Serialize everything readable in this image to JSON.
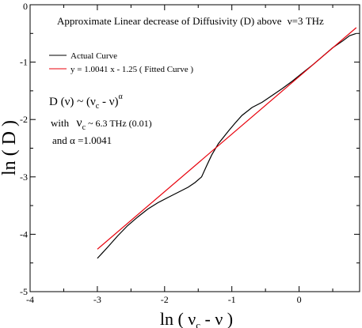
{
  "chart_data": {
    "type": "line",
    "title": "Approximate Linear decrease of Diffusivity (D) above",
    "title_suffix": "ν=3 THz",
    "xlabel": "ln ( ν",
    "xlabel_sub": "c",
    "xlabel_tail": " - ν )",
    "ylabel": "ln ( D )",
    "xlim": [
      -4,
      0.9
    ],
    "ylim": [
      -5,
      0
    ],
    "x_ticks": [
      -4,
      -3,
      -2,
      -1,
      0
    ],
    "y_ticks": [
      -5,
      -4,
      -3,
      -2,
      -1,
      0
    ],
    "grid": false,
    "legend_position": "top-left",
    "series": [
      {
        "name": "Actual Curve",
        "color": "#000000",
        "x": [
          -3.0,
          -2.85,
          -2.7,
          -2.55,
          -2.4,
          -2.25,
          -2.1,
          -1.95,
          -1.8,
          -1.65,
          -1.55,
          -1.45,
          -1.38,
          -1.3,
          -1.2,
          -1.05,
          -0.95,
          -0.85,
          -0.7,
          -0.55,
          -0.4,
          -0.25,
          -0.1,
          0.05,
          0.2,
          0.35,
          0.5,
          0.65,
          0.75,
          0.85
        ],
        "y": [
          -4.42,
          -4.23,
          -4.03,
          -3.85,
          -3.7,
          -3.56,
          -3.45,
          -3.36,
          -3.27,
          -3.18,
          -3.1,
          -3.0,
          -2.82,
          -2.62,
          -2.42,
          -2.2,
          -2.06,
          -1.93,
          -1.79,
          -1.7,
          -1.58,
          -1.46,
          -1.33,
          -1.19,
          -1.05,
          -0.9,
          -0.75,
          -0.63,
          -0.54,
          -0.5
        ]
      },
      {
        "name": "y = 1.0041 x - 1.25  ( Fitted Curve )",
        "color": "#e8000b",
        "x": [
          -3.0,
          0.85
        ],
        "y": [
          -4.26,
          -0.4
        ]
      }
    ],
    "annotations": {
      "relation_main": "D (ν) ~ (ν",
      "relation_sub": "c",
      "relation_tail": " - ν)",
      "relation_exp": "α",
      "nu_prefix": "with",
      "nu_symbol": "ν",
      "nu_sub": "c",
      "nu_value": " ~  6.3 THz (0.01)",
      "alpha_line": "and  α =1.0041"
    }
  }
}
